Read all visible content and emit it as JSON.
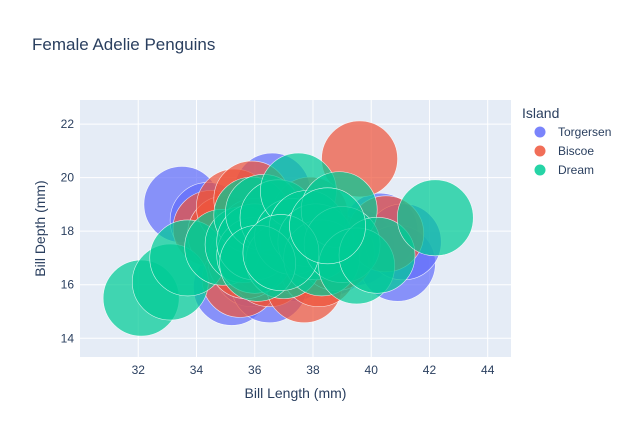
{
  "chart_data": {
    "type": "scatter",
    "title": "Female Adelie Penguins",
    "xlabel": "Bill Length (mm)",
    "ylabel": "Bill Depth (mm)",
    "xlim": [
      30,
      44.8
    ],
    "ylim": [
      13.3,
      22.9
    ],
    "xticks": [
      32,
      34,
      36,
      38,
      40,
      42,
      44
    ],
    "yticks": [
      14,
      16,
      18,
      20,
      22
    ],
    "grid": true,
    "legend": {
      "title": "Island",
      "placement": "right"
    },
    "series": [
      {
        "name": "Torgersen",
        "color": "#636efa",
        "points": [
          [
            33.5,
            19.0
          ],
          [
            34.4,
            18.4
          ],
          [
            35.2,
            15.9
          ],
          [
            35.5,
            17.5
          ],
          [
            35.9,
            16.6
          ],
          [
            36.2,
            17.2
          ],
          [
            36.6,
            17.8
          ],
          [
            36.6,
            19.5
          ],
          [
            37.3,
            16.8
          ],
          [
            37.8,
            17.3
          ],
          [
            38.6,
            17.0
          ],
          [
            39.5,
            17.4
          ],
          [
            40.3,
            18.0
          ],
          [
            40.9,
            16.8
          ],
          [
            41.1,
            17.6
          ],
          [
            36.5,
            16.0
          ]
        ]
      },
      {
        "name": "Biscoe",
        "color": "#ef553b",
        "points": [
          [
            34.5,
            18.1
          ],
          [
            35.0,
            17.9
          ],
          [
            35.3,
            18.9
          ],
          [
            35.5,
            16.2
          ],
          [
            35.9,
            19.2
          ],
          [
            36.0,
            17.8
          ],
          [
            36.4,
            17.1
          ],
          [
            36.5,
            16.6
          ],
          [
            37.6,
            17.0
          ],
          [
            37.7,
            16.0
          ],
          [
            38.2,
            16.6
          ],
          [
            38.8,
            17.2
          ],
          [
            39.6,
            20.7
          ],
          [
            40.5,
            17.9
          ],
          [
            35.7,
            16.9
          ],
          [
            37.9,
            18.6
          ]
        ]
      },
      {
        "name": "Dream",
        "color": "#00cc96",
        "points": [
          [
            32.1,
            15.5
          ],
          [
            33.1,
            16.1
          ],
          [
            33.7,
            17.0
          ],
          [
            34.9,
            17.4
          ],
          [
            35.6,
            17.5
          ],
          [
            35.9,
            18.6
          ],
          [
            36.0,
            17.1
          ],
          [
            36.0,
            17.6
          ],
          [
            36.3,
            18.7
          ],
          [
            36.8,
            18.5
          ],
          [
            37.0,
            16.9
          ],
          [
            37.3,
            17.8
          ],
          [
            37.5,
            19.5
          ],
          [
            37.8,
            18.1
          ],
          [
            38.1,
            17.6
          ],
          [
            38.3,
            17.0
          ],
          [
            38.9,
            18.8
          ],
          [
            39.0,
            17.5
          ],
          [
            39.5,
            16.7
          ],
          [
            40.2,
            17.1
          ],
          [
            42.2,
            18.5
          ],
          [
            36.1,
            16.8
          ],
          [
            36.9,
            17.2
          ],
          [
            38.5,
            18.2
          ]
        ]
      }
    ]
  }
}
